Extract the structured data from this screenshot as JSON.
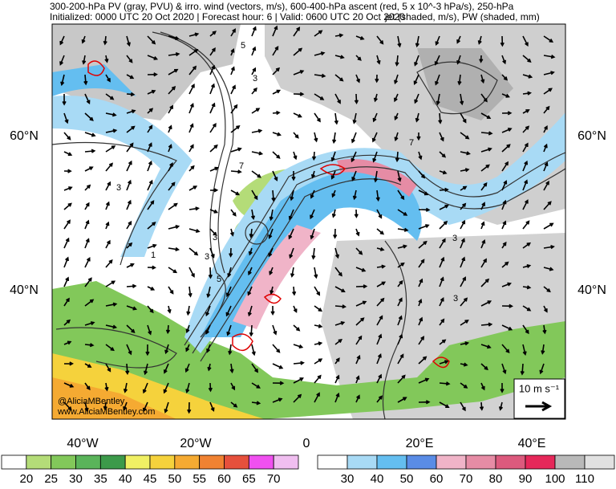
{
  "header": {
    "line1": "300-200-hPa PV (gray, PVU) & irro. wind (vectors, m/s), 600-400-hPa ascent (red, 5 x 10^-3 hPa/s), 250-hPa",
    "line2": "Initialized: 0000 UTC 20 Oct 2020 | Forecast hour: 6 | Valid: 0600 UTC 20 Oct 2020",
    "line2_right": "jet (shaded, m/s), PW (shaded, mm)"
  },
  "map": {
    "lat_labels": [
      "60°N",
      "40°N"
    ],
    "lon_labels": [
      "40°W",
      "20°W",
      "0",
      "20°E",
      "40°E"
    ],
    "contour_labels": [
      "5",
      "3",
      "1",
      "7",
      "3",
      "5",
      "3",
      "3",
      "7",
      "3",
      "3"
    ],
    "watermark": [
      "@AliciaMBentley",
      "www.AliciaMBentley.com"
    ],
    "vector_legend": "10 m s⁻¹"
  },
  "pw_colorbar": {
    "labels": [
      20,
      25,
      30,
      35,
      40,
      45,
      50,
      55,
      60,
      65,
      70
    ],
    "colors": [
      "#ffffff",
      "#b4dc78",
      "#82c85a",
      "#5ab45a",
      "#3c9a4a",
      "#f0f064",
      "#f5d23c",
      "#f5aa32",
      "#f08232",
      "#e6503c",
      "#f050f0",
      "#f0bef0"
    ]
  },
  "jet_colorbar": {
    "labels": [
      30,
      40,
      50,
      60,
      70,
      80,
      90,
      100,
      110
    ],
    "colors": [
      "#ffffff",
      "#a8daf5",
      "#64bef0",
      "#5a8ce6",
      "#f0b4c8",
      "#e68ca5",
      "#dc5a7d",
      "#e6285a",
      "#b9b9b9",
      "#e1e1e1"
    ]
  }
}
